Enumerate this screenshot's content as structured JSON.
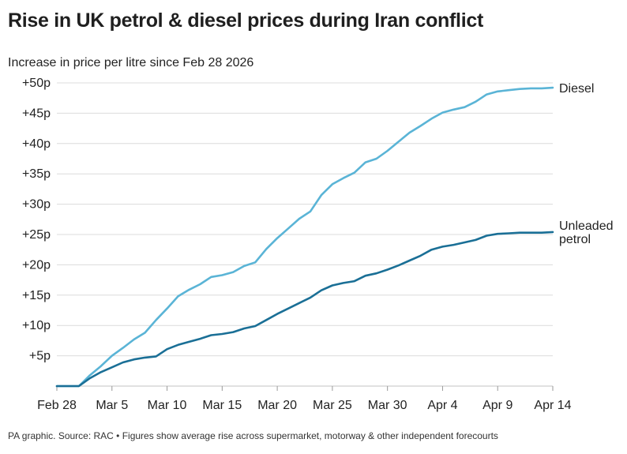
{
  "chart_data": {
    "type": "line",
    "title": "Rise in UK petrol & diesel prices during Iran conflict",
    "subtitle": "Increase in price per litre since Feb 28 2026",
    "footer": "PA graphic. Source: RAC • Figures show average rise across supermarket, motorway & other independent forecourts",
    "xlabel": "",
    "ylabel": "",
    "x_ticks": [
      "Feb 28",
      "Mar 5",
      "Mar 10",
      "Mar 15",
      "Mar 20",
      "Mar 25",
      "Mar 30",
      "Apr 4",
      "Apr 9",
      "Apr 14"
    ],
    "y_ticks": [
      "+5p",
      "+10p",
      "+15p",
      "+20p",
      "+25p",
      "+30p",
      "+35p",
      "+40p",
      "+45p",
      "+50p"
    ],
    "ylim": [
      0,
      50
    ],
    "grid": true,
    "legend": "inline labels at line ends",
    "x": [
      "2026-02-28",
      "2026-03-01",
      "2026-03-02",
      "2026-03-03",
      "2026-03-04",
      "2026-03-05",
      "2026-03-06",
      "2026-03-07",
      "2026-03-08",
      "2026-03-09",
      "2026-03-10",
      "2026-03-11",
      "2026-03-12",
      "2026-03-13",
      "2026-03-14",
      "2026-03-15",
      "2026-03-16",
      "2026-03-17",
      "2026-03-18",
      "2026-03-19",
      "2026-03-20",
      "2026-03-21",
      "2026-03-22",
      "2026-03-23",
      "2026-03-24",
      "2026-03-25",
      "2026-03-26",
      "2026-03-27",
      "2026-03-28",
      "2026-03-29",
      "2026-03-30",
      "2026-03-31",
      "2026-04-01",
      "2026-04-02",
      "2026-04-03",
      "2026-04-04",
      "2026-04-05",
      "2026-04-06",
      "2026-04-07",
      "2026-04-08",
      "2026-04-09",
      "2026-04-10",
      "2026-04-11",
      "2026-04-12",
      "2026-04-13",
      "2026-04-14"
    ],
    "series": [
      {
        "name": "Diesel",
        "color": "#5ab4d6",
        "values": [
          0,
          0,
          0,
          1.8,
          3.3,
          5.0,
          6.3,
          7.7,
          8.8,
          10.9,
          12.8,
          14.8,
          15.9,
          16.8,
          18.0,
          18.3,
          18.8,
          19.8,
          20.4,
          22.6,
          24.4,
          26.0,
          27.6,
          28.8,
          31.5,
          33.3,
          34.3,
          35.2,
          36.9,
          37.5,
          38.8,
          40.3,
          41.8,
          42.9,
          44.1,
          45.1,
          45.6,
          46.0,
          46.9,
          48.1,
          48.6,
          48.8,
          49.0,
          49.1,
          49.1,
          49.2
        ]
      },
      {
        "name": "Unleaded petrol",
        "color": "#1a6f96",
        "values": [
          0,
          0,
          0,
          1.3,
          2.3,
          3.1,
          3.9,
          4.4,
          4.7,
          4.9,
          6.1,
          6.8,
          7.3,
          7.8,
          8.4,
          8.6,
          8.9,
          9.5,
          9.9,
          10.9,
          11.9,
          12.8,
          13.7,
          14.6,
          15.8,
          16.6,
          17.0,
          17.3,
          18.2,
          18.6,
          19.2,
          19.9,
          20.7,
          21.5,
          22.5,
          23.0,
          23.3,
          23.7,
          24.1,
          24.8,
          25.1,
          25.2,
          25.3,
          25.3,
          25.3,
          25.4
        ]
      }
    ]
  }
}
